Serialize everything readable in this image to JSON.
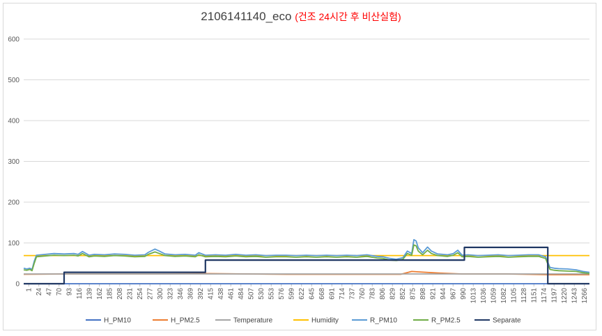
{
  "chart_data": {
    "type": "line",
    "title": "2106141140_eco",
    "subtitle": "(건조 24시간 후 비산실험)",
    "ylim": [
      0,
      600
    ],
    "yticks": [
      0,
      100,
      200,
      300,
      400,
      500,
      600
    ],
    "xlim": [
      1,
      1290
    ],
    "xticks": [
      "1",
      "24",
      "47",
      "70",
      "93",
      "116",
      "139",
      "162",
      "185",
      "208",
      "231",
      "254",
      "277",
      "300",
      "323",
      "346",
      "369",
      "392",
      "415",
      "438",
      "461",
      "484",
      "507",
      "530",
      "553",
      "576",
      "599",
      "622",
      "645",
      "668",
      "691",
      "714",
      "737",
      "760",
      "783",
      "806",
      "829",
      "852",
      "875",
      "898",
      "921",
      "944",
      "967",
      "990",
      "1013",
      "1036",
      "1059",
      "1082",
      "1105",
      "1128",
      "1151",
      "1174",
      "1197",
      "1220",
      "1243",
      "1266"
    ],
    "legend_position": "bottom",
    "grid": true,
    "series": [
      {
        "name": "H_PM10",
        "color": "#4472c4",
        "x": [
          1,
          1290
        ],
        "y": [
          0,
          0
        ]
      },
      {
        "name": "H_PM2.5",
        "color": "#ed7d31",
        "x": [
          1,
          100,
          300,
          415,
          600,
          860,
          885,
          900,
          950,
          1000,
          1100,
          1200,
          1290
        ],
        "y": [
          23,
          24,
          24,
          25,
          23,
          23,
          30,
          29,
          26,
          24,
          24,
          22,
          22
        ]
      },
      {
        "name": "Temperature",
        "color": "#a5a5a5",
        "x": [
          1,
          1290
        ],
        "y": [
          24,
          24
        ]
      },
      {
        "name": "Humidity",
        "color": "#ffc000",
        "x": [
          1,
          1290
        ],
        "y": [
          69,
          69
        ]
      },
      {
        "name": "R_PM10",
        "color": "#5b9bd5",
        "x": [
          1,
          8,
          15,
          20,
          25,
          30,
          50,
          70,
          93,
          116,
          125,
          135,
          150,
          162,
          185,
          208,
          231,
          254,
          277,
          285,
          300,
          310,
          323,
          346,
          369,
          392,
          400,
          415,
          438,
          461,
          484,
          507,
          530,
          553,
          576,
          599,
          622,
          645,
          668,
          691,
          714,
          737,
          760,
          783,
          806,
          820,
          835,
          850,
          865,
          875,
          885,
          890,
          895,
          900,
          910,
          921,
          930,
          944,
          967,
          980,
          990,
          1000,
          1013,
          1036,
          1059,
          1082,
          1105,
          1128,
          1151,
          1174,
          1190,
          1200,
          1210,
          1220,
          1240,
          1260,
          1275,
          1290
        ],
        "y": [
          38,
          36,
          38,
          35,
          55,
          70,
          72,
          74,
          73,
          74,
          72,
          79,
          70,
          72,
          71,
          73,
          72,
          70,
          71,
          77,
          85,
          80,
          73,
          71,
          72,
          70,
          76,
          70,
          71,
          70,
          72,
          70,
          71,
          69,
          70,
          70,
          69,
          70,
          69,
          70,
          69,
          70,
          69,
          71,
          67,
          66,
          62,
          60,
          64,
          80,
          74,
          108,
          105,
          88,
          76,
          90,
          80,
          73,
          71,
          74,
          82,
          70,
          71,
          69,
          70,
          71,
          69,
          70,
          71,
          71,
          66,
          40,
          38,
          37,
          36,
          34,
          30,
          28
        ]
      },
      {
        "name": "R_PM2.5",
        "color": "#70ad47",
        "x": [
          1,
          8,
          15,
          20,
          25,
          30,
          50,
          70,
          93,
          116,
          125,
          135,
          150,
          162,
          185,
          208,
          231,
          254,
          277,
          285,
          300,
          310,
          323,
          346,
          369,
          392,
          400,
          415,
          438,
          461,
          484,
          507,
          530,
          553,
          576,
          599,
          622,
          645,
          668,
          691,
          714,
          737,
          760,
          783,
          806,
          820,
          835,
          850,
          865,
          875,
          885,
          890,
          895,
          900,
          910,
          921,
          930,
          944,
          967,
          980,
          990,
          1000,
          1013,
          1036,
          1059,
          1082,
          1105,
          1128,
          1151,
          1174,
          1190,
          1200,
          1210,
          1220,
          1240,
          1260,
          1275,
          1290
        ],
        "y": [
          34,
          33,
          35,
          32,
          50,
          66,
          68,
          70,
          69,
          70,
          68,
          74,
          66,
          68,
          67,
          69,
          68,
          66,
          67,
          72,
          78,
          74,
          69,
          67,
          68,
          66,
          71,
          66,
          67,
          66,
          68,
          66,
          67,
          65,
          66,
          66,
          65,
          66,
          65,
          66,
          65,
          66,
          65,
          67,
          63,
          62,
          58,
          57,
          60,
          74,
          70,
          95,
          93,
          80,
          71,
          82,
          74,
          69,
          67,
          70,
          76,
          66,
          67,
          65,
          66,
          67,
          65,
          66,
          67,
          67,
          62,
          35,
          33,
          32,
          31,
          30,
          27,
          25
        ]
      },
      {
        "name": "Separate",
        "color": "#203864",
        "x": [
          1,
          93,
          93,
          415,
          415,
          1005,
          1005,
          1195,
          1195,
          1290
        ],
        "y": [
          0,
          0,
          28,
          28,
          58,
          58,
          89,
          89,
          0,
          0
        ]
      }
    ]
  }
}
